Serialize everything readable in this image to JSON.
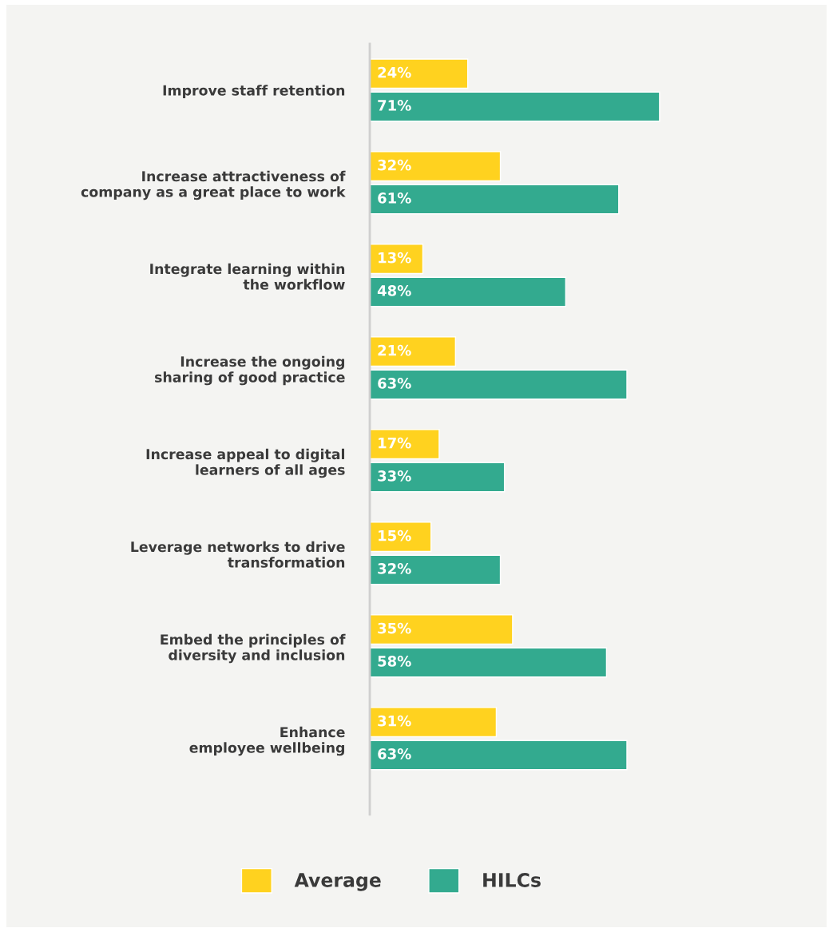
{
  "chart_data": {
    "type": "bar",
    "orientation": "horizontal",
    "categories": [
      "Improve staff retention",
      "Increase attractiveness of\ncompany as a great place to work",
      "Integrate learning within\nthe workflow",
      "Increase the ongoing\nsharing of good practice",
      "Increase appeal to digital\nlearners of all ages",
      "Leverage networks to drive\ntransformation",
      "Embed the principles of\ndiversity and inclusion",
      "Enhance\nemployee wellbeing"
    ],
    "series": [
      {
        "name": "Average",
        "color": "#ffd21f",
        "values": [
          24,
          32,
          13,
          21,
          17,
          15,
          35,
          31
        ],
        "value_labels": [
          "24%",
          "32%",
          "13%",
          "21%",
          "17%",
          "15%",
          "35%",
          "31%"
        ]
      },
      {
        "name": "HILCs",
        "color": "#33aa8f",
        "values": [
          71,
          61,
          48,
          63,
          33,
          32,
          58,
          63
        ],
        "value_labels": [
          "71%",
          "61%",
          "48%",
          "63%",
          "33%",
          "32%",
          "58%",
          "63%"
        ]
      }
    ],
    "legend": "bottom",
    "grid": false
  }
}
